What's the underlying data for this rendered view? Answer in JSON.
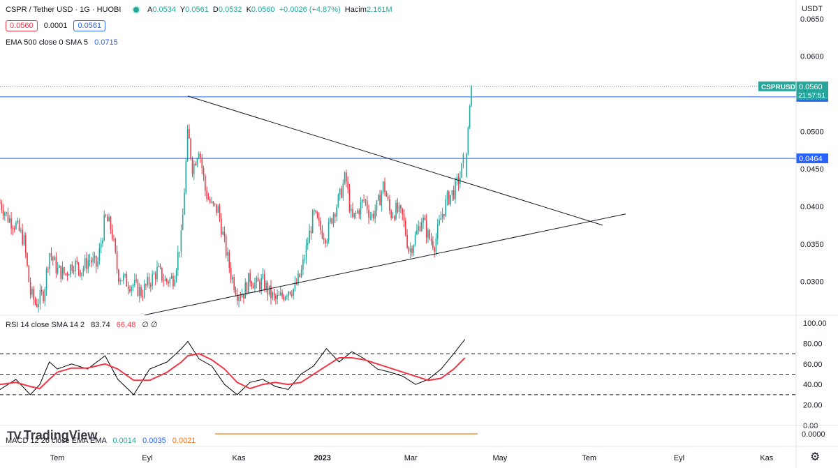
{
  "header": {
    "title": "CSPR / Tether USD · 1G · HUOBI",
    "open_label": "A",
    "open": "0.0534",
    "high_label": "Y",
    "high": "0.0561",
    "low_label": "D",
    "low": "0.0532",
    "close_label": "K",
    "close": "0.0560",
    "change": "+0.0026 (+4.87%)",
    "volume_label": "Hacim",
    "volume": "2.161M",
    "bid": "0.0560",
    "spread": "0.0001",
    "ask": "0.0561",
    "currency": "USDT"
  },
  "indicators": {
    "ema_label": "EMA 500 close 0 SMA 5",
    "ema_value": "0.0715",
    "rsi_label": "RSI 14 close SMA 14 2",
    "rsi_value": "83.74",
    "rsi_sma": "66.48",
    "rsi_extra": "∅ ∅",
    "macd_label": "MACD 12 26 close EMA EMA",
    "macd": "0.0014",
    "macd_signal": "0.0035",
    "macd_hist": "0.0021"
  },
  "branding": {
    "logo_text": "TradingView",
    "settings_icon": "gear-icon"
  },
  "colors": {
    "up": "#26a69a",
    "down": "#f23645",
    "hline": "#2962ff",
    "rsi": "#000000",
    "rsi_sma": "#f23645"
  },
  "chart_data": [
    {
      "type": "candlestick",
      "symbol": "CSPRUSDT",
      "last_price": "0.0560",
      "countdown": "21:57:51",
      "y_ticks": [
        "0.0650",
        "0.0600",
        "0.0500",
        "0.0450",
        "0.0400",
        "0.0350",
        "0.0300"
      ],
      "x_ticks": [
        "Tem",
        "Eyl",
        "Kas",
        "2023",
        "Mar",
        "May",
        "Tem",
        "Eyl",
        "Kas"
      ],
      "ylim": [
        0.0255,
        0.0675
      ],
      "horizontal_lines": [
        {
          "value": 0.0546,
          "label": "0.0546"
        },
        {
          "value": 0.0464,
          "label": "0.0464"
        }
      ],
      "trendlines": [
        {
          "from": [
            0.236,
            0.0547
          ],
          "to": [
            0.757,
            0.0375
          ]
        },
        {
          "from": [
            0.18,
            0.0255
          ],
          "to": [
            0.786,
            0.039
          ]
        }
      ],
      "close_path": [
        [
          0.0,
          0.0405
        ],
        [
          0.01,
          0.0385
        ],
        [
          0.02,
          0.0375
        ],
        [
          0.03,
          0.0355
        ],
        [
          0.038,
          0.0285
        ],
        [
          0.045,
          0.027
        ],
        [
          0.055,
          0.0285
        ],
        [
          0.062,
          0.034
        ],
        [
          0.072,
          0.0315
        ],
        [
          0.082,
          0.031
        ],
        [
          0.092,
          0.0325
        ],
        [
          0.102,
          0.0315
        ],
        [
          0.112,
          0.033
        ],
        [
          0.122,
          0.032
        ],
        [
          0.132,
          0.0385
        ],
        [
          0.14,
          0.037
        ],
        [
          0.148,
          0.031
        ],
        [
          0.158,
          0.03
        ],
        [
          0.168,
          0.0295
        ],
        [
          0.178,
          0.0285
        ],
        [
          0.188,
          0.03
        ],
        [
          0.198,
          0.0315
        ],
        [
          0.208,
          0.03
        ],
        [
          0.218,
          0.0305
        ],
        [
          0.228,
          0.036
        ],
        [
          0.236,
          0.05
        ],
        [
          0.242,
          0.045
        ],
        [
          0.25,
          0.048
        ],
        [
          0.258,
          0.042
        ],
        [
          0.266,
          0.04
        ],
        [
          0.274,
          0.0395
        ],
        [
          0.282,
          0.035
        ],
        [
          0.29,
          0.031
        ],
        [
          0.298,
          0.0285
        ],
        [
          0.306,
          0.0285
        ],
        [
          0.314,
          0.0305
        ],
        [
          0.322,
          0.0295
        ],
        [
          0.33,
          0.03
        ],
        [
          0.338,
          0.0285
        ],
        [
          0.346,
          0.0275
        ],
        [
          0.354,
          0.028
        ],
        [
          0.362,
          0.029
        ],
        [
          0.37,
          0.029
        ],
        [
          0.378,
          0.031
        ],
        [
          0.386,
          0.035
        ],
        [
          0.394,
          0.039
        ],
        [
          0.402,
          0.037
        ],
        [
          0.41,
          0.036
        ],
        [
          0.418,
          0.039
        ],
        [
          0.426,
          0.041
        ],
        [
          0.434,
          0.044
        ],
        [
          0.442,
          0.038
        ],
        [
          0.45,
          0.0395
        ],
        [
          0.458,
          0.041
        ],
        [
          0.466,
          0.0385
        ],
        [
          0.474,
          0.04
        ],
        [
          0.482,
          0.043
        ],
        [
          0.49,
          0.039
        ],
        [
          0.498,
          0.0395
        ],
        [
          0.506,
          0.0385
        ],
        [
          0.514,
          0.034
        ],
        [
          0.522,
          0.036
        ],
        [
          0.53,
          0.0385
        ],
        [
          0.538,
          0.036
        ],
        [
          0.546,
          0.035
        ],
        [
          0.554,
          0.0385
        ],
        [
          0.562,
          0.041
        ],
        [
          0.57,
          0.042
        ],
        [
          0.578,
          0.044
        ],
        [
          0.584,
          0.047
        ]
      ]
    },
    {
      "type": "line",
      "title": "RSI",
      "y_ticks": [
        "100.00",
        "80.00",
        "60.00",
        "40.00",
        "20.00",
        "0.00"
      ],
      "ylim": [
        0,
        100
      ],
      "bands": [
        70,
        50,
        30
      ],
      "series": [
        {
          "values_x": [
            0.0,
            0.02,
            0.038,
            0.05,
            0.062,
            0.072,
            0.09,
            0.11,
            0.132,
            0.148,
            0.168,
            0.188,
            0.21,
            0.228,
            0.236,
            0.25,
            0.266,
            0.282,
            0.298,
            0.314,
            0.33,
            0.346,
            0.362,
            0.378,
            0.394,
            0.41,
            0.426,
            0.442,
            0.458,
            0.474,
            0.49,
            0.506,
            0.522,
            0.538,
            0.554,
            0.57,
            0.584
          ],
          "values": [
            35,
            45,
            30,
            40,
            62,
            55,
            60,
            55,
            68,
            45,
            30,
            55,
            62,
            75,
            82,
            65,
            58,
            40,
            30,
            42,
            45,
            38,
            35,
            50,
            58,
            75,
            62,
            72,
            65,
            55,
            52,
            48,
            40,
            45,
            55,
            70,
            84
          ]
        },
        {
          "values_x": [
            0.0,
            0.02,
            0.038,
            0.05,
            0.062,
            0.072,
            0.09,
            0.11,
            0.132,
            0.148,
            0.168,
            0.188,
            0.21,
            0.228,
            0.236,
            0.25,
            0.266,
            0.282,
            0.298,
            0.314,
            0.33,
            0.346,
            0.362,
            0.378,
            0.394,
            0.41,
            0.426,
            0.442,
            0.458,
            0.474,
            0.49,
            0.506,
            0.522,
            0.538,
            0.554,
            0.57,
            0.584
          ],
          "values": [
            40,
            42,
            38,
            36,
            45,
            52,
            56,
            56,
            60,
            55,
            44,
            44,
            52,
            62,
            68,
            70,
            64,
            55,
            42,
            36,
            40,
            42,
            40,
            42,
            50,
            58,
            66,
            66,
            64,
            60,
            56,
            52,
            48,
            44,
            46,
            55,
            66
          ]
        }
      ]
    },
    {
      "type": "line",
      "title": "MACD",
      "y_ticks": [
        "0.0000"
      ],
      "ylim": [
        -0.005,
        0.005
      ]
    }
  ]
}
